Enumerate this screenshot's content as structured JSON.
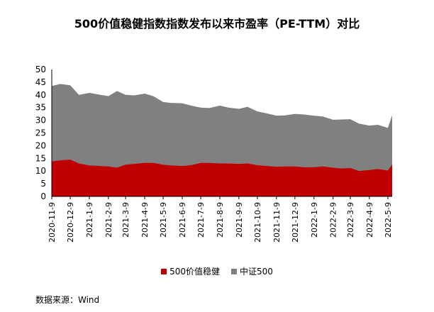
{
  "colors": {
    "series_500": "#C00000",
    "series_zz500": "#808080",
    "axis": "#000000",
    "tick_text": "#000000"
  },
  "title": "500价值稳健指数指数发布以来市盈率（PE-TTM）对比",
  "source": "数据来源：Wind",
  "chart_data": {
    "type": "area",
    "title": "500价值稳健指数指数发布以来市盈率（PE-TTM）对比",
    "xlabel": "",
    "ylabel": "",
    "ylim": [
      0,
      50
    ],
    "yticks": [
      0,
      5,
      10,
      15,
      20,
      25,
      30,
      35,
      40,
      45,
      50
    ],
    "grid": false,
    "legend_position": "bottom",
    "x_tick_labels": [
      "2020-11-9",
      "2020-12-9",
      "2021-1-9",
      "2021-2-9",
      "2021-3-9",
      "2021-4-9",
      "2021-5-9",
      "2021-6-9",
      "2021-7-9",
      "2021-8-9",
      "2021-9-9",
      "2021-10-9",
      "2021-11-9",
      "2021-12-9",
      "2022-1-9",
      "2022-2-9",
      "2022-3-9",
      "2022-4-9",
      "2022-5-9"
    ],
    "x": [
      "2020-11-9",
      "2020-11-23",
      "2020-12-9",
      "2020-12-23",
      "2021-1-9",
      "2021-1-23",
      "2021-2-9",
      "2021-2-23",
      "2021-3-9",
      "2021-3-23",
      "2021-4-9",
      "2021-4-23",
      "2021-5-9",
      "2021-5-23",
      "2021-6-9",
      "2021-6-23",
      "2021-7-9",
      "2021-7-23",
      "2021-8-9",
      "2021-8-23",
      "2021-9-9",
      "2021-9-23",
      "2021-10-9",
      "2021-10-23",
      "2021-11-9",
      "2021-11-23",
      "2021-12-9",
      "2021-12-23",
      "2022-1-9",
      "2022-1-23",
      "2022-2-9",
      "2022-2-23",
      "2022-3-9",
      "2022-3-23",
      "2022-4-9",
      "2022-4-23",
      "2022-5-9",
      "2022-5-16"
    ],
    "series": [
      {
        "name": "500价值稳健",
        "values": [
          13.8,
          14.2,
          14.5,
          13.0,
          12.2,
          12.0,
          11.8,
          11.3,
          12.5,
          12.8,
          13.2,
          13.2,
          12.5,
          12.2,
          12.0,
          12.3,
          13.2,
          13.2,
          13.0,
          13.0,
          12.8,
          13.0,
          12.3,
          12.0,
          11.7,
          11.8,
          11.8,
          11.5,
          11.5,
          11.8,
          11.3,
          11.0,
          11.2,
          10.0,
          10.4,
          10.8,
          10.2,
          12.6
        ]
      },
      {
        "name": "中证500",
        "values": [
          43.5,
          44.3,
          43.8,
          40.0,
          40.8,
          40.2,
          39.5,
          41.5,
          40.0,
          39.8,
          40.5,
          39.5,
          37.2,
          36.8,
          36.7,
          35.8,
          35.0,
          34.8,
          35.8,
          35.0,
          34.5,
          35.3,
          33.5,
          32.8,
          31.8,
          31.9,
          32.5,
          32.3,
          31.8,
          31.5,
          30.2,
          30.3,
          30.4,
          28.7,
          27.9,
          28.2,
          27.0,
          32.0
        ]
      }
    ]
  }
}
